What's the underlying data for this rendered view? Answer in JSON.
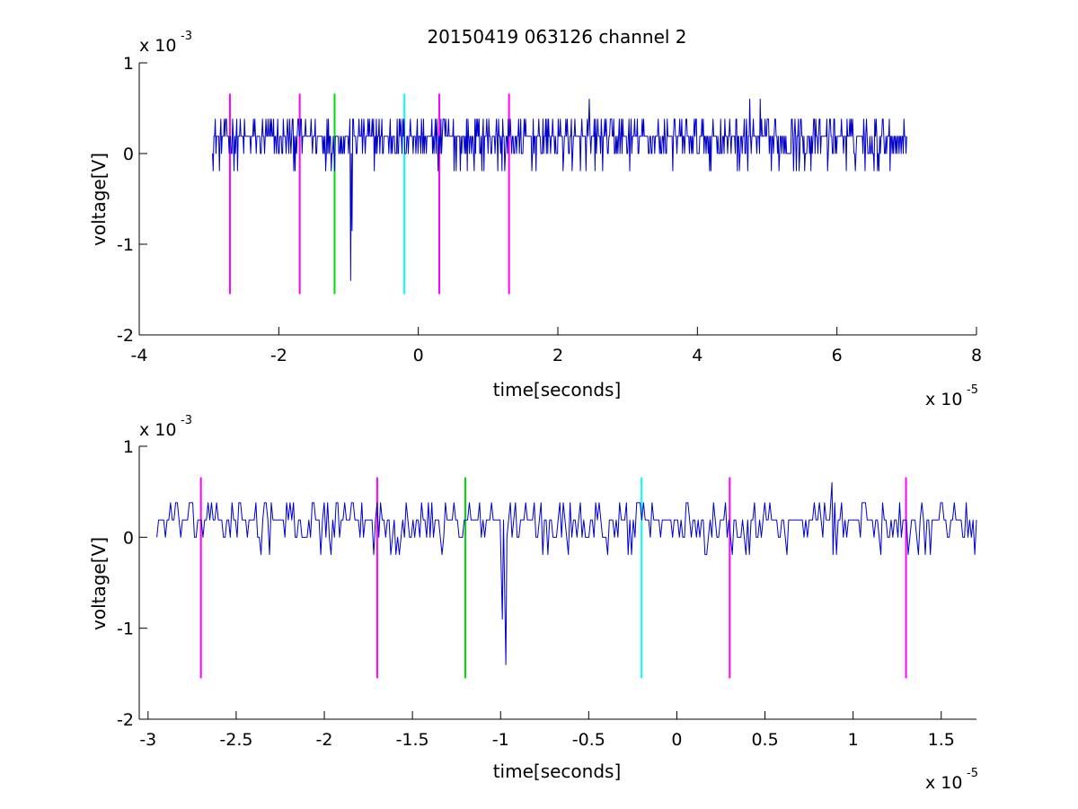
{
  "figure": {
    "title": "20150419 063126 channel 2"
  },
  "chart_data": [
    {
      "type": "line",
      "title": "20150419 063126 channel 2",
      "xlabel": "time[seconds]",
      "ylabel": "voltage[V]",
      "x_multiplier_label": "x 10",
      "x_multiplier_exp": "-5",
      "y_multiplier_label": "x 10",
      "y_multiplier_exp": "-3",
      "xlim": [
        -4,
        8
      ],
      "ylim": [
        -2,
        1
      ],
      "xticks": [
        -4,
        -2,
        0,
        2,
        4,
        6,
        8
      ],
      "xtick_labels": [
        "-4",
        "-2",
        "0",
        "2",
        "4",
        "6",
        "8"
      ],
      "yticks": [
        -2,
        -1,
        0,
        1
      ],
      "ytick_labels": [
        "-2",
        "-1",
        "0",
        "1"
      ],
      "trace": {
        "color": "#0000cc",
        "x_range": [
          -2.95,
          7.0
        ],
        "baseline": 0.19,
        "noise_levels": [
          0,
          0.19,
          0.38
        ],
        "notable_points": [
          {
            "x": -0.97,
            "y": -1.4
          },
          {
            "x": -0.95,
            "y": -0.85
          },
          {
            "x": 2.45,
            "y": 0.6
          },
          {
            "x": 4.9,
            "y": 0.6
          },
          {
            "x": 4.75,
            "y": 0.6
          }
        ]
      },
      "markers": [
        {
          "x": -2.7,
          "y_top": 0.66,
          "y_bottom": -1.55,
          "color": "#ff00ff"
        },
        {
          "x": -1.7,
          "y_top": 0.66,
          "y_bottom": -1.55,
          "color": "#ff00ff"
        },
        {
          "x": -1.2,
          "y_top": 0.66,
          "y_bottom": -1.55,
          "color": "#00dd00"
        },
        {
          "x": -0.2,
          "y_top": 0.66,
          "y_bottom": -1.55,
          "color": "#00ffff"
        },
        {
          "x": 0.3,
          "y_top": 0.66,
          "y_bottom": -1.55,
          "color": "#ff00ff"
        },
        {
          "x": 1.3,
          "y_top": 0.66,
          "y_bottom": -1.55,
          "color": "#ff00ff"
        }
      ]
    },
    {
      "type": "line",
      "title": "",
      "xlabel": "time[seconds]",
      "ylabel": "voltage[V]",
      "x_multiplier_label": "x 10",
      "x_multiplier_exp": "-5",
      "y_multiplier_label": "x 10",
      "y_multiplier_exp": "-3",
      "xlim": [
        -3.05,
        1.7
      ],
      "ylim": [
        -2,
        1
      ],
      "xticks": [
        -3,
        -2.5,
        -2,
        -1.5,
        -1,
        -0.5,
        0,
        0.5,
        1,
        1.5
      ],
      "xtick_labels": [
        "-3",
        "-2.5",
        "-2",
        "-1.5",
        "-1",
        "-0.5",
        "0",
        "0.5",
        "1",
        "1.5"
      ],
      "yticks": [
        -2,
        -1,
        0,
        1
      ],
      "ytick_labels": [
        "-2",
        "-1",
        "0",
        "1"
      ],
      "trace": {
        "color": "#0000cc",
        "x_range": [
          -2.95,
          1.7
        ],
        "baseline": 0.19,
        "noise_levels": [
          0,
          0.19,
          0.38
        ],
        "notable_points": [
          {
            "x": -0.97,
            "y": -1.4
          },
          {
            "x": -0.99,
            "y": -0.9
          },
          {
            "x": 0.88,
            "y": 0.6
          }
        ]
      },
      "markers": [
        {
          "x": -2.7,
          "y_top": 0.66,
          "y_bottom": -1.55,
          "color": "#ff00ff"
        },
        {
          "x": -1.7,
          "y_top": 0.66,
          "y_bottom": -1.55,
          "color": "#ff00ff"
        },
        {
          "x": -1.2,
          "y_top": 0.66,
          "y_bottom": -1.55,
          "color": "#00dd00"
        },
        {
          "x": -0.2,
          "y_top": 0.66,
          "y_bottom": -1.55,
          "color": "#00ffff"
        },
        {
          "x": 0.3,
          "y_top": 0.66,
          "y_bottom": -1.55,
          "color": "#ff00ff"
        },
        {
          "x": 1.3,
          "y_top": 0.66,
          "y_bottom": -1.55,
          "color": "#ff00ff"
        }
      ]
    }
  ]
}
